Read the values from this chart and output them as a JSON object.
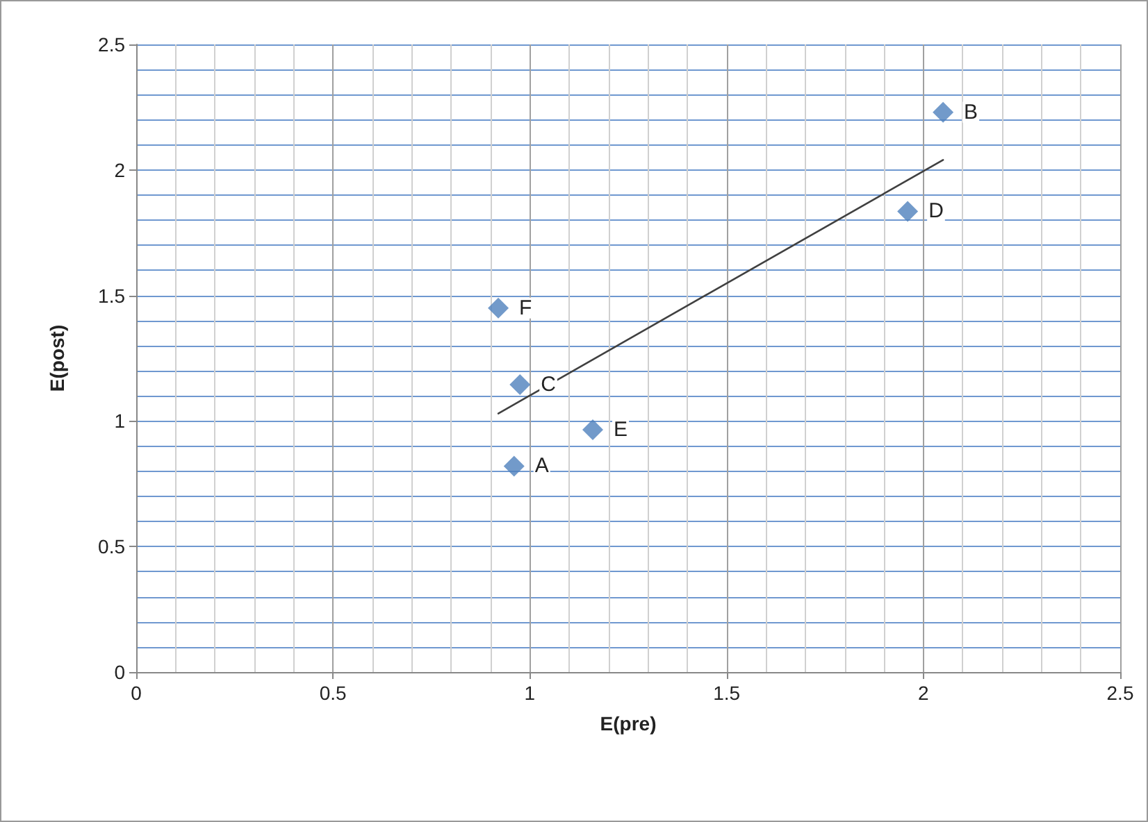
{
  "chart_data": {
    "type": "scatter",
    "xlabel": "E(pre)",
    "ylabel": "E(post)",
    "xlim": [
      0,
      2.5
    ],
    "ylim": [
      0,
      2.5
    ],
    "xticks": [
      0,
      0.5,
      1,
      1.5,
      2,
      2.5
    ],
    "yticks": [
      0,
      0.5,
      1,
      1.5,
      2,
      2.5
    ],
    "grid": true,
    "marker": "diamond",
    "series": [
      {
        "color": "#4f81bd",
        "x": [
          0.96,
          2.05,
          0.975,
          1.96,
          1.16,
          0.92
        ],
        "values": [
          0.82,
          2.23,
          1.145,
          1.835,
          0.965,
          1.45
        ]
      },
      {
        "type": "line",
        "color": "#404040",
        "marker": "none",
        "line_style": "solid",
        "x": [
          0.92,
          2.05
        ],
        "values": [
          1.03,
          2.04
        ]
      }
    ],
    "annotations": [
      {
        "text": "A",
        "x": 0.96,
        "y": 0.82
      },
      {
        "text": "B",
        "x": 2.05,
        "y": 2.23
      },
      {
        "text": "C",
        "x": 0.975,
        "y": 1.145
      },
      {
        "text": "D",
        "x": 1.96,
        "y": 1.835
      },
      {
        "text": "E",
        "x": 1.16,
        "y": 0.965
      },
      {
        "text": "F",
        "x": 0.92,
        "y": 1.45
      }
    ]
  }
}
